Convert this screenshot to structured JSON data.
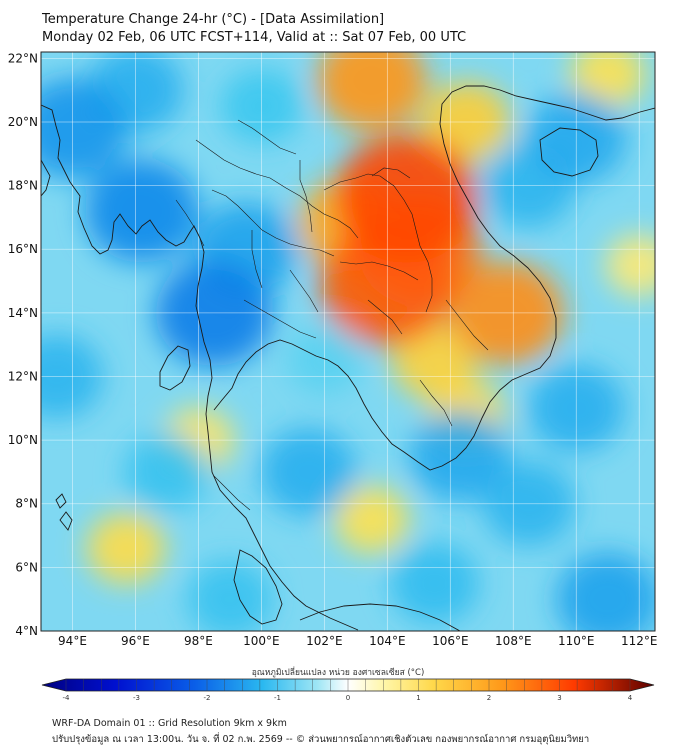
{
  "header": {
    "title_line1": "Temperature Change 24-hr (°C) - [Data Assimilation]",
    "title_line2": "Monday 02 Feb, 06 UTC FCST+114, Valid at :: Sat 07 Feb, 00 UTC"
  },
  "map": {
    "lat_labels": [
      "22°N",
      "20°N",
      "18°N",
      "16°N",
      "14°N",
      "12°N",
      "10°N",
      "8°N",
      "6°N",
      "4°N"
    ],
    "lat_values": [
      22,
      20,
      18,
      16,
      14,
      12,
      10,
      8,
      6,
      4
    ],
    "lon_labels": [
      "94°E",
      "96°E",
      "98°E",
      "100°E",
      "102°E",
      "104°E",
      "106°E",
      "108°E",
      "110°E",
      "112°E"
    ],
    "lon_values": [
      94,
      96,
      98,
      100,
      102,
      104,
      106,
      108,
      110,
      112
    ],
    "lon_range": [
      93,
      112.5
    ],
    "lat_range": [
      4,
      22.2
    ],
    "field_blobs": [
      {
        "lon": 104.6,
        "lat": 17.6,
        "value": 2.9
      },
      {
        "lon": 104.0,
        "lat": 14.9,
        "value": 2.7
      },
      {
        "lon": 105.0,
        "lat": 16.0,
        "value": 2.4
      },
      {
        "lon": 103.5,
        "lat": 21.3,
        "value": 2.0
      },
      {
        "lon": 102.8,
        "lat": 16.8,
        "value": 1.8
      },
      {
        "lon": 107.8,
        "lat": 14.0,
        "value": 2.1
      },
      {
        "lon": 106.5,
        "lat": 20.0,
        "value": 1.4
      },
      {
        "lon": 105.5,
        "lat": 12.5,
        "value": 1.3
      },
      {
        "lon": 106.5,
        "lat": 10.8,
        "value": 1.1
      },
      {
        "lon": 98.0,
        "lat": 10.0,
        "value": 0.9
      },
      {
        "lon": 95.7,
        "lat": 6.6,
        "value": 1.1
      },
      {
        "lon": 103.5,
        "lat": 7.5,
        "value": 1.0
      },
      {
        "lon": 111.0,
        "lat": 21.5,
        "value": 1.0
      },
      {
        "lon": 112.0,
        "lat": 15.5,
        "value": 0.8
      },
      {
        "lon": 94.0,
        "lat": 19.8,
        "value": -2.0
      },
      {
        "lon": 96.2,
        "lat": 17.2,
        "value": -2.1
      },
      {
        "lon": 98.5,
        "lat": 14.0,
        "value": -2.2
      },
      {
        "lon": 99.5,
        "lat": 16.0,
        "value": -1.8
      },
      {
        "lon": 96.0,
        "lat": 21.0,
        "value": -1.6
      },
      {
        "lon": 93.5,
        "lat": 12.0,
        "value": -1.5
      },
      {
        "lon": 110.0,
        "lat": 19.5,
        "value": -1.7
      },
      {
        "lon": 108.5,
        "lat": 18.0,
        "value": -1.5
      },
      {
        "lon": 110.0,
        "lat": 11.0,
        "value": -1.6
      },
      {
        "lon": 106.3,
        "lat": 9.5,
        "value": -1.7
      },
      {
        "lon": 101.5,
        "lat": 9.0,
        "value": -1.6
      },
      {
        "lon": 105.5,
        "lat": 5.5,
        "value": -1.4
      },
      {
        "lon": 111.0,
        "lat": 5.0,
        "value": -1.8
      },
      {
        "lon": 99.0,
        "lat": 5.0,
        "value": -1.3
      },
      {
        "lon": 97.0,
        "lat": 9.0,
        "value": -1.3
      },
      {
        "lon": 102.0,
        "lat": 12.5,
        "value": -1.0
      },
      {
        "lon": 108.5,
        "lat": 8.0,
        "value": -1.5
      },
      {
        "lon": 100.0,
        "lat": 20.5,
        "value": -1.2
      }
    ]
  },
  "colorbar": {
    "label": "อุณหภูมิเปลี่ยนแปลง หน่วย องศาเซลเซียส (°C)",
    "min": -4,
    "max": 4,
    "tick_labels": [
      "-4",
      "-3",
      "-2",
      "-1",
      "0",
      "1",
      "2",
      "3",
      "4"
    ],
    "tick_values": [
      -4,
      -3,
      -2,
      -1,
      0,
      1,
      2,
      3,
      4
    ]
  },
  "footer": {
    "line1": "WRF-DA Domain 01 :: Grid Resolution 9km x 9km",
    "line2": "ปรับปรุงข้อมูล ณ เวลา 13:00น. วัน จ. ที่ 02 ก.พ. 2569 -- © ส่วนพยากรณ์อากาศเชิงตัวเลข กองพยากรณ์อากาศ กรมอุตุนิยมวิทยา"
  }
}
